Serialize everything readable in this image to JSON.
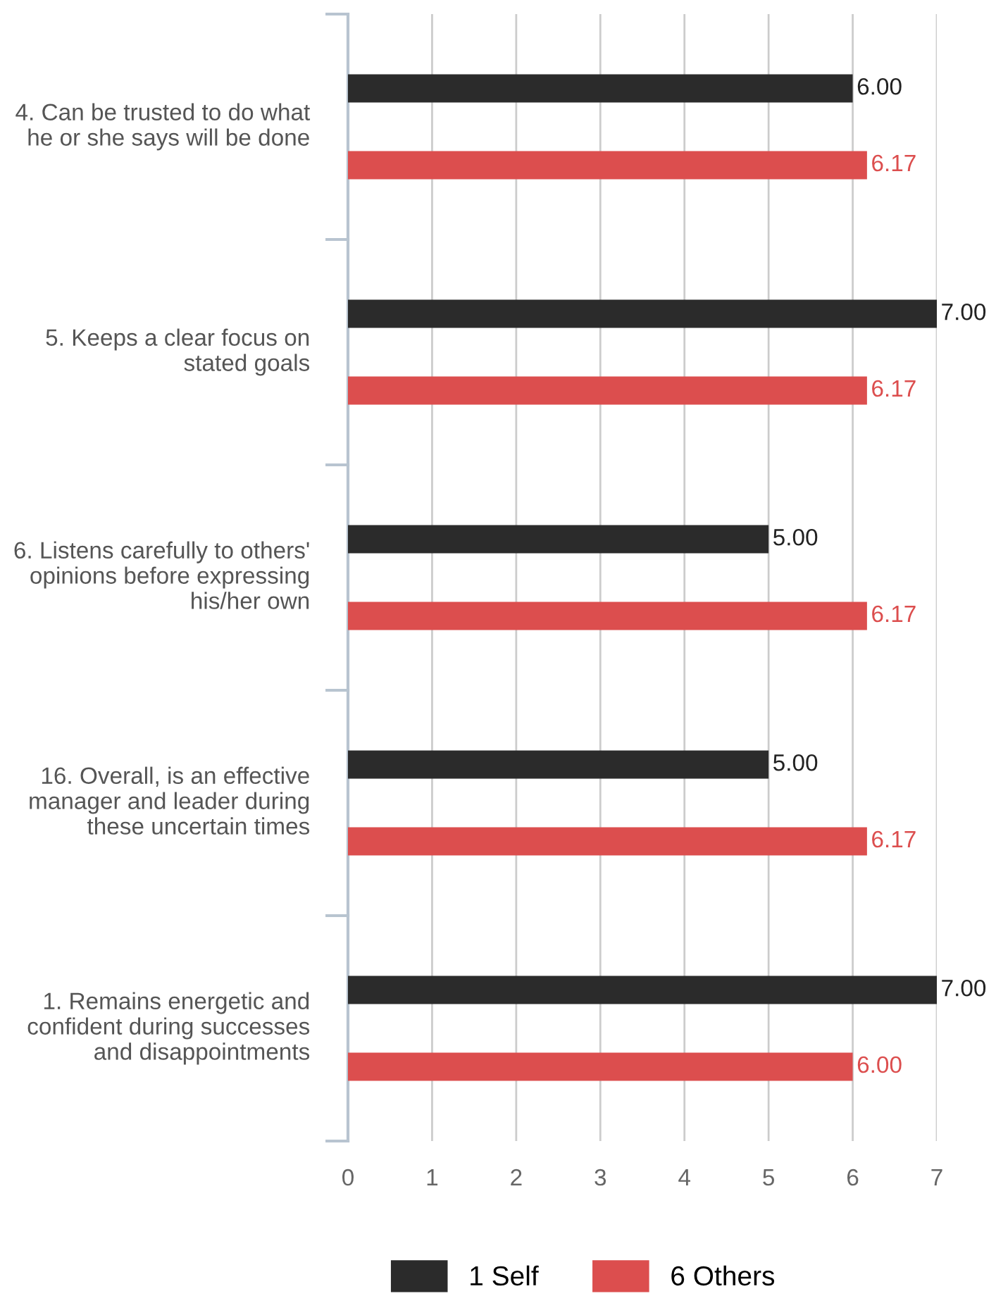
{
  "chart_data": {
    "type": "bar",
    "orientation": "horizontal",
    "categories": [
      "4. Can be trusted to do what he or she says will be done",
      "5. Keeps a clear focus on stated goals",
      "6. Listens carefully to others' opinions before expressing his/her own",
      "16. Overall, is an effective manager and leader during these uncertain times",
      "1. Remains energetic and confident during successes and disappointments"
    ],
    "series": [
      {
        "name": "1 Self",
        "color": "#2b2b2b",
        "values": [
          6.0,
          7.0,
          5.0,
          5.0,
          7.0
        ],
        "value_labels": [
          "6.00",
          "7.00",
          "5.00",
          "5.00",
          "7.00"
        ]
      },
      {
        "name": "6 Others",
        "color": "#dc4e4e",
        "values": [
          6.17,
          6.17,
          6.17,
          6.17,
          6.0
        ],
        "value_labels": [
          "6.17",
          "6.17",
          "6.17",
          "6.17",
          "6.00"
        ]
      }
    ],
    "xlim": [
      0,
      7
    ],
    "xticks": [
      0,
      1,
      2,
      3,
      4,
      5,
      6,
      7
    ],
    "grid": "x",
    "legend": "bottom"
  }
}
